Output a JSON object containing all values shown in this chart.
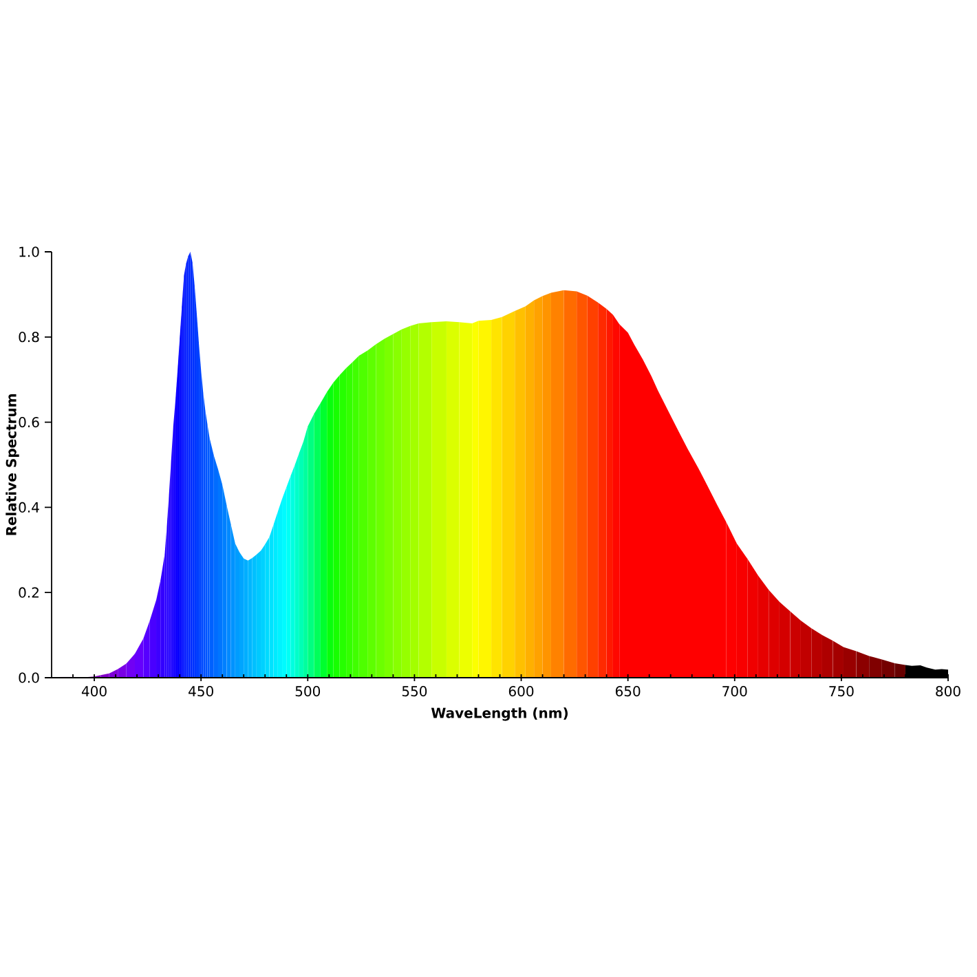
{
  "chart_data": {
    "type": "area",
    "xlabel": "WaveLength (nm)",
    "ylabel": "Relative Spectrum",
    "series": [
      {
        "color": "#68006c",
        "x": [
          380,
          385
        ],
        "values": [
          0.001,
          0.002
        ]
      },
      {
        "color": "#740082",
        "x": [
          385,
          390
        ],
        "values": [
          0.002,
          0.002
        ]
      },
      {
        "color": "#7d0097",
        "x": [
          390,
          395
        ],
        "values": [
          0.002,
          0.001
        ]
      },
      {
        "color": "#8100ab",
        "x": [
          395,
          400
        ],
        "values": [
          0.001,
          0.003
        ]
      },
      {
        "color": "#8200ba",
        "x": [
          400,
          403
        ],
        "values": [
          0.003,
          0.006
        ]
      },
      {
        "color": "#8200c8",
        "x": [
          403,
          407
        ],
        "values": [
          0.006,
          0.01
        ]
      },
      {
        "color": "#7e00d7",
        "x": [
          407,
          411
        ],
        "values": [
          0.01,
          0.02
        ]
      },
      {
        "color": "#7900e5",
        "x": [
          411,
          415
        ],
        "values": [
          0.02,
          0.033
        ]
      },
      {
        "color": "#7100f4",
        "x": [
          415,
          419
        ],
        "values": [
          0.033,
          0.056
        ]
      },
      {
        "color": "#6500fd",
        "x": [
          419,
          423
        ],
        "values": [
          0.056,
          0.092
        ]
      },
      {
        "color": "#5600ff",
        "x": [
          423,
          426
        ],
        "values": [
          0.092,
          0.134
        ]
      },
      {
        "color": "#4900ff",
        "x": [
          426,
          429
        ],
        "values": [
          0.134,
          0.182
        ]
      },
      {
        "color": "#3d00ff",
        "x": [
          429,
          431
        ],
        "values": [
          0.182,
          0.228
        ]
      },
      {
        "color": "#3300ff",
        "x": [
          431,
          433
        ],
        "values": [
          0.228,
          0.29
        ]
      },
      {
        "color": "#2b00ff",
        "x": [
          433,
          434
        ],
        "values": [
          0.29,
          0.355
        ]
      },
      {
        "color": "#2500ff",
        "x": [
          434,
          435
        ],
        "values": [
          0.355,
          0.43
        ]
      },
      {
        "color": "#2000ff",
        "x": [
          435,
          436
        ],
        "values": [
          0.43,
          0.51
        ]
      },
      {
        "color": "#1a00ff",
        "x": [
          436,
          437
        ],
        "values": [
          0.51,
          0.59
        ]
      },
      {
        "color": "#1400ff",
        "x": [
          437,
          438
        ],
        "values": [
          0.59,
          0.65
        ]
      },
      {
        "color": "#0e00ff",
        "x": [
          438,
          439
        ],
        "values": [
          0.65,
          0.72
        ]
      },
      {
        "color": "#0500ff",
        "x": [
          439,
          440
        ],
        "values": [
          0.72,
          0.795
        ]
      },
      {
        "color": "#0006ff",
        "x": [
          440,
          441
        ],
        "values": [
          0.795,
          0.87
        ]
      },
      {
        "color": "#000fff",
        "x": [
          441,
          442
        ],
        "values": [
          0.87,
          0.944
        ]
      },
      {
        "color": "#0017ff",
        "x": [
          442,
          443
        ],
        "values": [
          0.944,
          0.972
        ]
      },
      {
        "color": "#001fff",
        "x": [
          443,
          444
        ],
        "values": [
          0.972,
          0.99
        ]
      },
      {
        "color": "#0025ff",
        "x": [
          444,
          445
        ],
        "values": [
          0.99,
          1.0
        ]
      },
      {
        "color": "#002cff",
        "x": [
          445,
          446
        ],
        "values": [
          1.0,
          0.975
        ]
      },
      {
        "color": "#0032ff",
        "x": [
          446,
          447
        ],
        "values": [
          0.975,
          0.92
        ]
      },
      {
        "color": "#0038ff",
        "x": [
          447,
          448
        ],
        "values": [
          0.92,
          0.855
        ]
      },
      {
        "color": "#003eff",
        "x": [
          448,
          449
        ],
        "values": [
          0.855,
          0.785
        ]
      },
      {
        "color": "#0044ff",
        "x": [
          449,
          450
        ],
        "values": [
          0.785,
          0.723
        ]
      },
      {
        "color": "#0049ff",
        "x": [
          450,
          451
        ],
        "values": [
          0.723,
          0.67
        ]
      },
      {
        "color": "#004fff",
        "x": [
          451,
          452
        ],
        "values": [
          0.67,
          0.628
        ]
      },
      {
        "color": "#0054ff",
        "x": [
          452,
          453
        ],
        "values": [
          0.628,
          0.595
        ]
      },
      {
        "color": "#005aff",
        "x": [
          453,
          454
        ],
        "values": [
          0.595,
          0.563
        ]
      },
      {
        "color": "#0061ff",
        "x": [
          454,
          456
        ],
        "values": [
          0.563,
          0.522
        ]
      },
      {
        "color": "#006cff",
        "x": [
          456,
          458
        ],
        "values": [
          0.522,
          0.489
        ]
      },
      {
        "color": "#0076ff",
        "x": [
          458,
          460
        ],
        "values": [
          0.489,
          0.453
        ]
      },
      {
        "color": "#0080ff",
        "x": [
          460,
          462
        ],
        "values": [
          0.453,
          0.405
        ]
      },
      {
        "color": "#0089ff",
        "x": [
          462,
          464
        ],
        "values": [
          0.405,
          0.36
        ]
      },
      {
        "color": "#0093ff",
        "x": [
          464,
          466
        ],
        "values": [
          0.36,
          0.315
        ]
      },
      {
        "color": "#009cff",
        "x": [
          466,
          468
        ],
        "values": [
          0.315,
          0.295
        ]
      },
      {
        "color": "#00a5ff",
        "x": [
          468,
          470
        ],
        "values": [
          0.295,
          0.28
        ]
      },
      {
        "color": "#00aeff",
        "x": [
          470,
          472
        ],
        "values": [
          0.28,
          0.275
        ]
      },
      {
        "color": "#00b7ff",
        "x": [
          472,
          474
        ],
        "values": [
          0.275,
          0.281
        ]
      },
      {
        "color": "#00c0ff",
        "x": [
          474,
          476
        ],
        "values": [
          0.281,
          0.289
        ]
      },
      {
        "color": "#00c9ff",
        "x": [
          476,
          478
        ],
        "values": [
          0.289,
          0.298
        ]
      },
      {
        "color": "#00d1ff",
        "x": [
          478,
          480
        ],
        "values": [
          0.298,
          0.313
        ]
      },
      {
        "color": "#00daff",
        "x": [
          480,
          482
        ],
        "values": [
          0.313,
          0.33
        ]
      },
      {
        "color": "#00e2ff",
        "x": [
          482,
          484
        ],
        "values": [
          0.33,
          0.36
        ]
      },
      {
        "color": "#00ebff",
        "x": [
          484,
          486
        ],
        "values": [
          0.36,
          0.39
        ]
      },
      {
        "color": "#00f3ff",
        "x": [
          486,
          488
        ],
        "values": [
          0.39,
          0.42
        ]
      },
      {
        "color": "#00fbff",
        "x": [
          488,
          490
        ],
        "values": [
          0.42,
          0.447
        ]
      },
      {
        "color": "#00fff5",
        "x": [
          490,
          492
        ],
        "values": [
          0.447,
          0.474
        ]
      },
      {
        "color": "#00ffe0",
        "x": [
          492,
          494
        ],
        "values": [
          0.474,
          0.5
        ]
      },
      {
        "color": "#00ffca",
        "x": [
          494,
          496
        ],
        "values": [
          0.5,
          0.528
        ]
      },
      {
        "color": "#00ffb5",
        "x": [
          496,
          498
        ],
        "values": [
          0.528,
          0.555
        ]
      },
      {
        "color": "#00ff9e",
        "x": [
          498,
          500
        ],
        "values": [
          0.555,
          0.59
        ]
      },
      {
        "color": "#00ff80",
        "x": [
          500,
          503
        ],
        "values": [
          0.59,
          0.62
        ]
      },
      {
        "color": "#00ff5a",
        "x": [
          503,
          506
        ],
        "values": [
          0.62,
          0.645
        ]
      },
      {
        "color": "#00ff2e",
        "x": [
          506,
          509
        ],
        "values": [
          0.645,
          0.671
        ]
      },
      {
        "color": "#08ff0c",
        "x": [
          509,
          512
        ],
        "values": [
          0.671,
          0.693
        ]
      },
      {
        "color": "#17ff00",
        "x": [
          512,
          515
        ],
        "values": [
          0.693,
          0.711
        ]
      },
      {
        "color": "#26ff00",
        "x": [
          515,
          518
        ],
        "values": [
          0.711,
          0.727
        ]
      },
      {
        "color": "#34ff00",
        "x": [
          518,
          521
        ],
        "values": [
          0.727,
          0.741
        ]
      },
      {
        "color": "#40ff00",
        "x": [
          521,
          524
        ],
        "values": [
          0.741,
          0.756
        ]
      },
      {
        "color": "#4eff00",
        "x": [
          524,
          528
        ],
        "values": [
          0.756,
          0.768
        ]
      },
      {
        "color": "#5eff00",
        "x": [
          528,
          532
        ],
        "values": [
          0.768,
          0.783
        ]
      },
      {
        "color": "#6cff00",
        "x": [
          532,
          536
        ],
        "values": [
          0.783,
          0.796
        ]
      },
      {
        "color": "#7aff00",
        "x": [
          536,
          540
        ],
        "values": [
          0.796,
          0.807
        ]
      },
      {
        "color": "#88ff00",
        "x": [
          540,
          544
        ],
        "values": [
          0.807,
          0.818
        ]
      },
      {
        "color": "#96ff00",
        "x": [
          544,
          548
        ],
        "values": [
          0.818,
          0.826
        ]
      },
      {
        "color": "#a3ff00",
        "x": [
          548,
          552
        ],
        "values": [
          0.826,
          0.832
        ]
      },
      {
        "color": "#b3ff00",
        "x": [
          552,
          558
        ],
        "values": [
          0.832,
          0.835
        ]
      },
      {
        "color": "#c8ff00",
        "x": [
          558,
          565
        ],
        "values": [
          0.835,
          0.837
        ]
      },
      {
        "color": "#dbff00",
        "x": [
          565,
          571
        ],
        "values": [
          0.837,
          0.835
        ]
      },
      {
        "color": "#edff00",
        "x": [
          571,
          577
        ],
        "values": [
          0.835,
          0.832
        ]
      },
      {
        "color": "#fbff00",
        "x": [
          577,
          580
        ],
        "values": [
          0.832,
          0.838
        ]
      },
      {
        "color": "#fff600",
        "x": [
          580,
          586
        ],
        "values": [
          0.838,
          0.84
        ]
      },
      {
        "color": "#ffe400",
        "x": [
          586,
          591
        ],
        "values": [
          0.84,
          0.847
        ]
      },
      {
        "color": "#ffd200",
        "x": [
          591,
          597
        ],
        "values": [
          0.847,
          0.861
        ]
      },
      {
        "color": "#ffc000",
        "x": [
          597,
          602
        ],
        "values": [
          0.861,
          0.872
        ]
      },
      {
        "color": "#ffb000",
        "x": [
          602,
          606
        ],
        "values": [
          0.872,
          0.886
        ]
      },
      {
        "color": "#ffa200",
        "x": [
          606,
          610
        ],
        "values": [
          0.886,
          0.896
        ]
      },
      {
        "color": "#ff9400",
        "x": [
          610,
          614
        ],
        "values": [
          0.896,
          0.904
        ]
      },
      {
        "color": "#ff8200",
        "x": [
          614,
          620
        ],
        "values": [
          0.904,
          0.91
        ]
      },
      {
        "color": "#ff6b00",
        "x": [
          620,
          626
        ],
        "values": [
          0.91,
          0.907
        ]
      },
      {
        "color": "#ff5500",
        "x": [
          626,
          631
        ],
        "values": [
          0.907,
          0.897
        ]
      },
      {
        "color": "#ff4000",
        "x": [
          631,
          636
        ],
        "values": [
          0.897,
          0.881
        ]
      },
      {
        "color": "#ff2a00",
        "x": [
          636,
          640
        ],
        "values": [
          0.881,
          0.866
        ]
      },
      {
        "color": "#ff1800",
        "x": [
          640,
          643
        ],
        "values": [
          0.866,
          0.852
        ]
      },
      {
        "color": "#ff0800",
        "x": [
          643,
          646
        ],
        "values": [
          0.852,
          0.83
        ]
      },
      {
        "color": "#ff0000",
        "x": [
          646,
          650,
          653,
          657,
          661,
          664,
          669,
          674,
          678,
          683,
          687,
          692,
          696
        ],
        "values": [
          0.83,
          0.81,
          0.782,
          0.747,
          0.708,
          0.675,
          0.625,
          0.576,
          0.537,
          0.492,
          0.453,
          0.404,
          0.366
        ]
      },
      {
        "color": "#fe0000",
        "x": [
          696,
          701
        ],
        "values": [
          0.366,
          0.315
        ]
      },
      {
        "color": "#f80000",
        "x": [
          701,
          706
        ],
        "values": [
          0.315,
          0.279
        ]
      },
      {
        "color": "#f00000",
        "x": [
          706,
          711
        ],
        "values": [
          0.279,
          0.24
        ]
      },
      {
        "color": "#e60000",
        "x": [
          711,
          716
        ],
        "values": [
          0.24,
          0.206
        ]
      },
      {
        "color": "#de0000",
        "x": [
          716,
          721
        ],
        "values": [
          0.206,
          0.178
        ]
      },
      {
        "color": "#d40000",
        "x": [
          721,
          726
        ],
        "values": [
          0.178,
          0.156
        ]
      },
      {
        "color": "#cb0000",
        "x": [
          726,
          731
        ],
        "values": [
          0.156,
          0.134
        ]
      },
      {
        "color": "#c10000",
        "x": [
          731,
          736
        ],
        "values": [
          0.134,
          0.116
        ]
      },
      {
        "color": "#b80000",
        "x": [
          736,
          741
        ],
        "values": [
          0.116,
          0.1
        ]
      },
      {
        "color": "#ae0000",
        "x": [
          741,
          746
        ],
        "values": [
          0.1,
          0.087
        ]
      },
      {
        "color": "#a40000",
        "x": [
          746,
          751
        ],
        "values": [
          0.087,
          0.072
        ]
      },
      {
        "color": "#990000",
        "x": [
          751,
          757
        ],
        "values": [
          0.072,
          0.062
        ]
      },
      {
        "color": "#8c0000",
        "x": [
          757,
          763
        ],
        "values": [
          0.062,
          0.051
        ]
      },
      {
        "color": "#800000",
        "x": [
          763,
          769
        ],
        "values": [
          0.051,
          0.043
        ]
      },
      {
        "color": "#740000",
        "x": [
          769,
          775
        ],
        "values": [
          0.043,
          0.034
        ]
      },
      {
        "color": "#670000",
        "x": [
          775,
          780
        ],
        "values": [
          0.034,
          0.03
        ]
      },
      {
        "color": "#000000",
        "x": [
          780,
          783,
          787,
          790,
          794,
          797,
          800
        ],
        "values": [
          0.03,
          0.028,
          0.029,
          0.024,
          0.019,
          0.02,
          0.019
        ]
      }
    ],
    "xlim": [
      380,
      800
    ],
    "ylim": [
      0,
      1
    ],
    "xticks": [
      {
        "value": 390,
        "label": null
      },
      400,
      {
        "value": 410,
        "label": null
      },
      {
        "value": 420,
        "label": null
      },
      {
        "value": 430,
        "label": null
      },
      {
        "value": 440,
        "label": null
      },
      450,
      {
        "value": 460,
        "label": null
      },
      {
        "value": 470,
        "label": null
      },
      {
        "value": 480,
        "label": null
      },
      {
        "value": 490,
        "label": null
      },
      500,
      {
        "value": 510,
        "label": null
      },
      {
        "value": 520,
        "label": null
      },
      {
        "value": 530,
        "label": null
      },
      {
        "value": 540,
        "label": null
      },
      550,
      {
        "value": 560,
        "label": null
      },
      {
        "value": 570,
        "label": null
      },
      {
        "value": 580,
        "label": null
      },
      {
        "value": 590,
        "label": null
      },
      600,
      {
        "value": 610,
        "label": null
      },
      {
        "value": 620,
        "label": null
      },
      {
        "value": 630,
        "label": null
      },
      {
        "value": 640,
        "label": null
      },
      650,
      {
        "value": 660,
        "label": null
      },
      {
        "value": 670,
        "label": null
      },
      {
        "value": 680,
        "label": null
      },
      {
        "value": 690,
        "label": null
      },
      700,
      {
        "value": 710,
        "label": null
      },
      {
        "value": 720,
        "label": null
      },
      {
        "value": 730,
        "label": null
      },
      {
        "value": 740,
        "label": null
      },
      750,
      {
        "value": 760,
        "label": null
      },
      {
        "value": 770,
        "label": null
      },
      {
        "value": 780,
        "label": null
      },
      {
        "value": 790,
        "label": null
      },
      800
    ],
    "yticks": [
      {
        "value": 0,
        "label": "0.0"
      },
      0.2,
      0.4,
      0.6,
      0.8,
      {
        "value": 1,
        "label": "1.0"
      }
    ]
  }
}
